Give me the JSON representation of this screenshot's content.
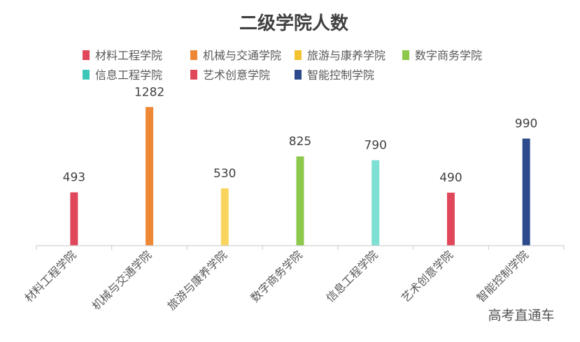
{
  "chart_data": {
    "type": "bar",
    "title": "二级学院人数",
    "categories": [
      "材料工程学院",
      "机械与交通学院",
      "旅游与康养学院",
      "数字商务学院",
      "信息工程学院",
      "艺术创意学院",
      "智能控制学院"
    ],
    "values": [
      493,
      1282,
      530,
      825,
      790,
      490,
      990
    ],
    "colors": [
      "#E0475A",
      "#ED8936",
      "#F9D55E",
      "#8CC84B",
      "#7EDFD3",
      "#E0475A",
      "#2C4A8C"
    ],
    "legend": {
      "placement": "top",
      "items": [
        {
          "label": "材料工程学院",
          "color": "#E0475A"
        },
        {
          "label": "机械与交通学院",
          "color": "#ED8936"
        },
        {
          "label": "旅游与康养学院",
          "color": "#F2C230"
        },
        {
          "label": "数字商务学院",
          "color": "#8CC84B"
        },
        {
          "label": "信息工程学院",
          "color": "#3CC8B8"
        },
        {
          "label": "艺术创意学院",
          "color": "#E0475A"
        },
        {
          "label": "智能控制学院",
          "color": "#2C4A8C"
        }
      ]
    },
    "ylim": [
      0,
      1400
    ],
    "grid": false,
    "xlabel": "",
    "ylabel": ""
  },
  "watermark": "高考直通车"
}
